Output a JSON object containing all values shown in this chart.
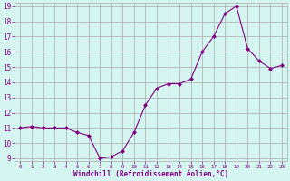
{
  "x": [
    0,
    1,
    2,
    3,
    4,
    5,
    6,
    7,
    8,
    9,
    10,
    11,
    12,
    13,
    14,
    15,
    16,
    17,
    18,
    19,
    20,
    21,
    22,
    23
  ],
  "y": [
    11.0,
    11.1,
    11.0,
    11.0,
    11.0,
    10.7,
    10.5,
    9.0,
    9.1,
    9.5,
    10.7,
    12.5,
    13.6,
    13.9,
    13.9,
    14.2,
    16.0,
    17.0,
    18.5,
    19.0,
    16.2,
    15.4,
    14.9,
    15.1
  ],
  "line_color": "#800080",
  "marker": "D",
  "marker_size": 2,
  "bg_color": "#d4f5f0",
  "grid_color": "#aaaaaa",
  "xlabel": "Windchill (Refroidissement éolien,°C)",
  "xlabel_color": "#800080",
  "tick_color": "#800080",
  "ylim": [
    9,
    19
  ],
  "xlim": [
    -0.5,
    23.5
  ],
  "yticks": [
    9,
    10,
    11,
    12,
    13,
    14,
    15,
    16,
    17,
    18,
    19
  ],
  "xticks": [
    0,
    1,
    2,
    3,
    4,
    5,
    6,
    7,
    8,
    9,
    10,
    11,
    12,
    13,
    14,
    15,
    16,
    17,
    18,
    19,
    20,
    21,
    22,
    23
  ]
}
